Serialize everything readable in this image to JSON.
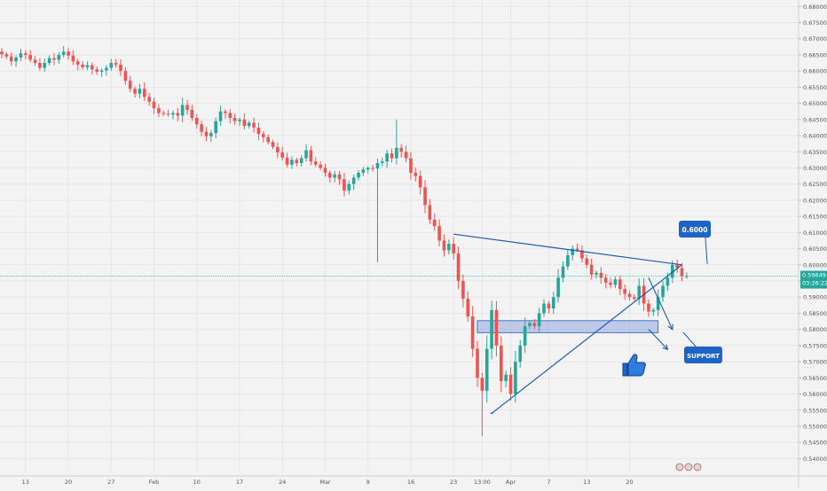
{
  "chart_data": {
    "type": "candlestick",
    "title": "",
    "xlabel": "",
    "ylabel": "",
    "ylim": [
      0.536,
      0.682
    ],
    "y_ticks": [
      "0.68000",
      "0.67500",
      "0.67000",
      "0.66500",
      "0.66000",
      "0.65500",
      "0.65000",
      "0.64500",
      "0.64000",
      "0.63500",
      "0.63000",
      "0.62500",
      "0.62000",
      "0.61500",
      "0.61000",
      "0.60500",
      "0.60000",
      "0.59500",
      "0.59000",
      "0.58500",
      "0.58000",
      "0.57500",
      "0.57000",
      "0.56500",
      "0.56000",
      "0.55500",
      "0.55000",
      "0.54500",
      "0.54000"
    ],
    "x_ticks": [
      {
        "label": "13",
        "i": 5
      },
      {
        "label": "20",
        "i": 14
      },
      {
        "label": "27",
        "i": 23
      },
      {
        "label": "Feb",
        "i": 32
      },
      {
        "label": "10",
        "i": 41
      },
      {
        "label": "17",
        "i": 50
      },
      {
        "label": "24",
        "i": 59
      },
      {
        "label": "Mar",
        "i": 68
      },
      {
        "label": "9",
        "i": 77
      },
      {
        "label": "16",
        "i": 86
      },
      {
        "label": "23",
        "i": 95
      },
      {
        "label": "13:00",
        "i": 101
      },
      {
        "label": "Apr",
        "i": 107
      },
      {
        "label": "7",
        "i": 115
      },
      {
        "label": "13",
        "i": 123
      },
      {
        "label": "20",
        "i": 132
      }
    ],
    "current_price": "0.59649",
    "countdown": "03:26:22",
    "current_value": 0.5965,
    "candle_count": 145,
    "closes": [
      0.6652,
      0.6645,
      0.663,
      0.6642,
      0.6655,
      0.665,
      0.6635,
      0.6625,
      0.661,
      0.6625,
      0.664,
      0.6635,
      0.665,
      0.666,
      0.6648,
      0.663,
      0.662,
      0.6612,
      0.6618,
      0.6605,
      0.6598,
      0.6602,
      0.661,
      0.6625,
      0.662,
      0.66,
      0.657,
      0.6545,
      0.653,
      0.6545,
      0.652,
      0.6505,
      0.6485,
      0.647,
      0.6468,
      0.6465,
      0.647,
      0.6462,
      0.6495,
      0.648,
      0.6455,
      0.6435,
      0.6412,
      0.6398,
      0.6408,
      0.6445,
      0.6475,
      0.647,
      0.6455,
      0.6445,
      0.645,
      0.643,
      0.644,
      0.6425,
      0.6405,
      0.6395,
      0.638,
      0.6365,
      0.6348,
      0.6332,
      0.631,
      0.6325,
      0.6315,
      0.633,
      0.6355,
      0.632,
      0.631,
      0.63,
      0.6285,
      0.627,
      0.628,
      0.6265,
      0.623,
      0.625,
      0.627,
      0.6285,
      0.6295,
      0.63,
      0.6298,
      0.6315,
      0.632,
      0.6345,
      0.633,
      0.6362,
      0.635,
      0.633,
      0.6285,
      0.6275,
      0.624,
      0.6185,
      0.614,
      0.612,
      0.6075,
      0.6045,
      0.6065,
      0.6035,
      0.595,
      0.5895,
      0.584,
      0.574,
      0.565,
      0.561,
      0.574,
      0.586,
      0.575,
      0.564,
      0.566,
      0.56,
      0.57,
      0.575,
      0.581,
      0.582,
      0.581,
      0.585,
      0.588,
      0.5865,
      0.59,
      0.596,
      0.5995,
      0.603,
      0.605,
      0.6045,
      0.602,
      0.6,
      0.597,
      0.5975,
      0.596,
      0.5945,
      0.5938,
      0.5955,
      0.5925,
      0.591,
      0.59,
      0.5895,
      0.5935,
      0.588,
      0.5855,
      0.586,
      0.59,
      0.5935,
      0.596,
      0.6,
      0.599,
      0.5965,
      0.5965
    ],
    "horizontal_line": 0.5965,
    "support_zone": {
      "from_index": 100,
      "to_index": 138,
      "top": 0.5827,
      "bottom": 0.579
    },
    "triangle": {
      "upper_line": [
        {
          "i": 95,
          "v": 0.6095
        },
        {
          "i": 143,
          "v": 0.6
        }
      ],
      "lower_line": [
        {
          "i": 103,
          "v": 0.554
        },
        {
          "i": 143,
          "v": 0.6
        }
      ]
    },
    "arrows": [
      {
        "from": {
          "i": 136,
          "v": 0.596
        },
        "to": {
          "i": 141,
          "v": 0.58
        }
      },
      {
        "from": {
          "i": 136,
          "v": 0.58
        },
        "to": {
          "i": 140,
          "v": 0.5738
        }
      }
    ],
    "annotations": [
      {
        "text": "0.6000",
        "i": 139,
        "v": 0.609
      },
      {
        "text": "SUPPORT",
        "i": 140,
        "v": 0.575
      }
    ],
    "colors": {
      "up": "#26a69a",
      "down": "#ef5350",
      "drawing": "#1c5bad",
      "zone_fill": "#8fa8e0",
      "badge": "#1e64c8",
      "price_label": "#26a69a",
      "background": "#f3f3f3"
    },
    "icons": [
      "thumbs-up-icon"
    ]
  }
}
